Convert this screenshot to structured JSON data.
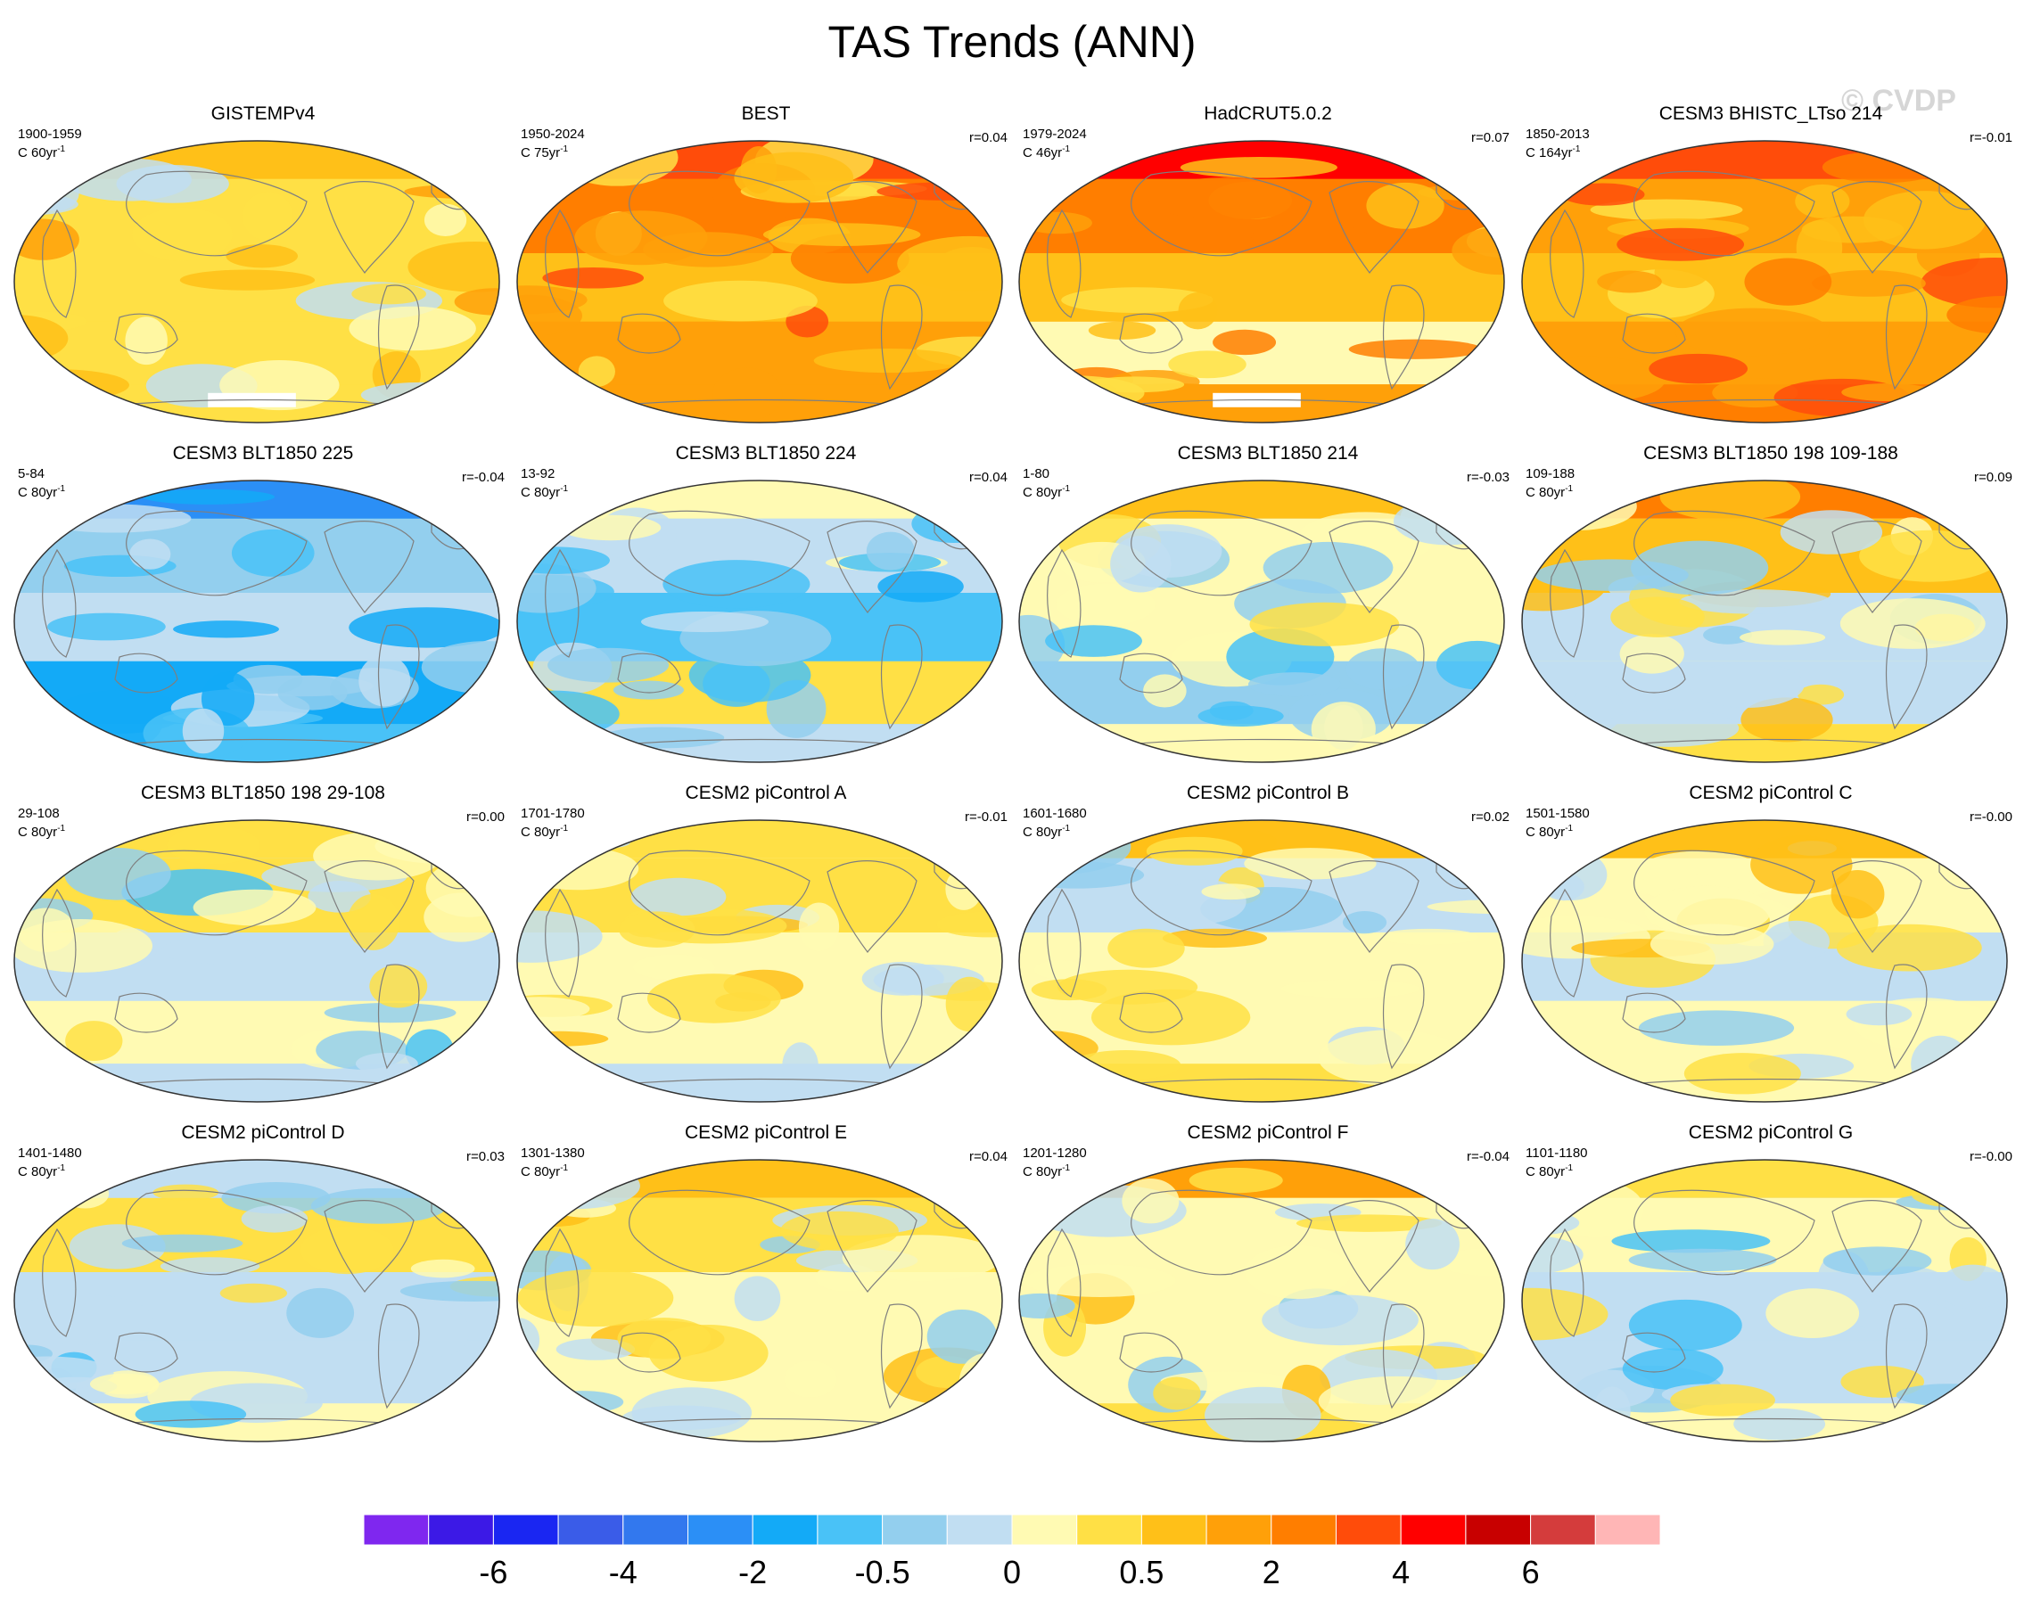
{
  "title": "TAS Trends (ANN)",
  "watermark": "© CVDP",
  "units": {
    "prefix": "C",
    "suffix": "yr",
    "exp": "-1"
  },
  "colors": {
    "levels": [
      "#7f27ef",
      "#3c19e6",
      "#1a26f2",
      "#3a5ce8",
      "#3278ee",
      "#2b8ff6",
      "#13aaf7",
      "#49c2f7",
      "#93cfee",
      "#c1def2",
      "#fffab3",
      "#ffe045",
      "#ffc018",
      "#ffa009",
      "#ff7e00",
      "#ff4c0a",
      "#ff0000",
      "#c80000",
      "#d43c3c",
      "#ffb6b6"
    ],
    "continent_outline": "#7f7f7f",
    "missing": "#ffffff"
  },
  "chart_data": [
    {
      "type": "heatmap",
      "title": "GISTEMPv4",
      "period": "1900-1959",
      "years": "60",
      "corr": "",
      "base": 11,
      "regional": {
        "arctic": 12,
        "northern-midlatitudes": 11,
        "tropics": 11,
        "southern-ocean": 11,
        "antarctica": "mixed, partly missing"
      },
      "missing_region": "arctic strip and parts of antarctica"
    },
    {
      "type": "heatmap",
      "title": "BEST",
      "period": "1950-2024",
      "years": "75",
      "corr": "r=0.04",
      "base": 13,
      "regional": {
        "arctic": 15,
        "northern-midlatitudes": 14,
        "tropics": 12,
        "southern-ocean": 13,
        "antarctica": 13
      }
    },
    {
      "type": "heatmap",
      "title": "HadCRUT5.0.2",
      "period": "1979-2024",
      "years": "46",
      "corr": "r=0.07",
      "base": 13,
      "regional": {
        "arctic": 16,
        "northern-midlatitudes": 14,
        "tropics": 12,
        "southern-ocean": 10,
        "antarctica": "partly missing"
      },
      "missing_region": "parts of antarctica"
    },
    {
      "type": "heatmap",
      "title": "CESM3 BHISTC_LTso 214",
      "period": "1850-2013",
      "years": "164",
      "corr": "r=-0.01",
      "base": 13,
      "regional": {
        "arctic": 15,
        "northern-midlatitudes": 13,
        "tropics": 12,
        "southern-ocean": 13,
        "antarctica": 14
      }
    },
    {
      "type": "heatmap",
      "title": "CESM3 BLT1850 225",
      "period": "5-84",
      "years": "80",
      "corr": "r=-0.04",
      "base": 7,
      "regional": {
        "arctic": 5,
        "northern-midlatitudes": 8,
        "tropics": 9,
        "southern-ocean": 6,
        "antarctica": 7
      }
    },
    {
      "type": "heatmap",
      "title": "CESM3 BLT1850 224",
      "period": "13-92",
      "years": "80",
      "corr": "r=0.04",
      "base": 8,
      "regional": {
        "arctic": 10,
        "northern-midlatitudes": 9,
        "tropics": 7,
        "southern-ocean": 11,
        "antarctica": 9
      }
    },
    {
      "type": "heatmap",
      "title": "CESM3 BLT1850 214",
      "period": "1-80",
      "years": "80",
      "corr": "r=-0.03",
      "base": 9,
      "regional": {
        "arctic": 12,
        "northern-midlatitudes": 10,
        "tropics": 10,
        "southern-ocean": 8,
        "antarctica": 10
      }
    },
    {
      "type": "heatmap",
      "title": "CESM3 BLT1850 198 109-188",
      "period": "109-188",
      "years": "80",
      "corr": "r=0.09",
      "base": 10,
      "regional": {
        "arctic": 14,
        "northern-midlatitudes": 12,
        "tropics": 9,
        "southern-ocean": 9,
        "antarctica": 11
      }
    },
    {
      "type": "heatmap",
      "title": "CESM3 BLT1850 198 29-108",
      "period": "29-108",
      "years": "80",
      "corr": "r=0.00",
      "base": 9,
      "regional": {
        "arctic": 11,
        "northern-midlatitudes": 11,
        "tropics": 9,
        "southern-ocean": 10,
        "antarctica": 9
      }
    },
    {
      "type": "heatmap",
      "title": "CESM2 piControl A",
      "period": "1701-1780",
      "years": "80",
      "corr": "r=-0.01",
      "base": 10,
      "regional": {
        "arctic": 11,
        "northern-midlatitudes": 11,
        "tropics": 10,
        "southern-ocean": 10,
        "antarctica": 9
      }
    },
    {
      "type": "heatmap",
      "title": "CESM2 piControl B",
      "period": "1601-1680",
      "years": "80",
      "corr": "r=0.02",
      "base": 10,
      "regional": {
        "arctic": 12,
        "northern-midlatitudes": 9,
        "tropics": 10,
        "southern-ocean": 10,
        "antarctica": 11
      }
    },
    {
      "type": "heatmap",
      "title": "CESM2 piControl C",
      "period": "1501-1580",
      "years": "80",
      "corr": "r=-0.00",
      "base": 10,
      "regional": {
        "arctic": 12,
        "northern-midlatitudes": 10,
        "tropics": 9,
        "southern-ocean": 10,
        "antarctica": 10
      }
    },
    {
      "type": "heatmap",
      "title": "CESM2 piControl D",
      "period": "1401-1480",
      "years": "80",
      "corr": "r=0.03",
      "base": 9,
      "regional": {
        "arctic": 9,
        "northern-midlatitudes": 11,
        "tropics": 9,
        "southern-ocean": 9,
        "antarctica": 10
      }
    },
    {
      "type": "heatmap",
      "title": "CESM2 piControl E",
      "period": "1301-1380",
      "years": "80",
      "corr": "r=0.04",
      "base": 10,
      "regional": {
        "arctic": 12,
        "northern-midlatitudes": 11,
        "tropics": 10,
        "southern-ocean": 10,
        "antarctica": 10
      }
    },
    {
      "type": "heatmap",
      "title": "CESM2 piControl F",
      "period": "1201-1280",
      "years": "80",
      "corr": "r=-0.04",
      "base": 10,
      "regional": {
        "arctic": 13,
        "northern-midlatitudes": 10,
        "tropics": 10,
        "southern-ocean": 10,
        "antarctica": 11
      }
    },
    {
      "type": "heatmap",
      "title": "CESM2 piControl G",
      "period": "1101-1180",
      "years": "80",
      "corr": "r=-0.00",
      "base": 9,
      "regional": {
        "arctic": 11,
        "northern-midlatitudes": 10,
        "tropics": 9,
        "southern-ocean": 9,
        "antarctica": 10
      }
    }
  ],
  "colorbar": {
    "tick_labels": [
      "-6",
      "-4",
      "-2",
      "-0.5",
      "0",
      "0.5",
      "2",
      "4",
      "6"
    ],
    "tick_boundaries": [
      2,
      4,
      6,
      8,
      10,
      12,
      14,
      16,
      18
    ]
  }
}
